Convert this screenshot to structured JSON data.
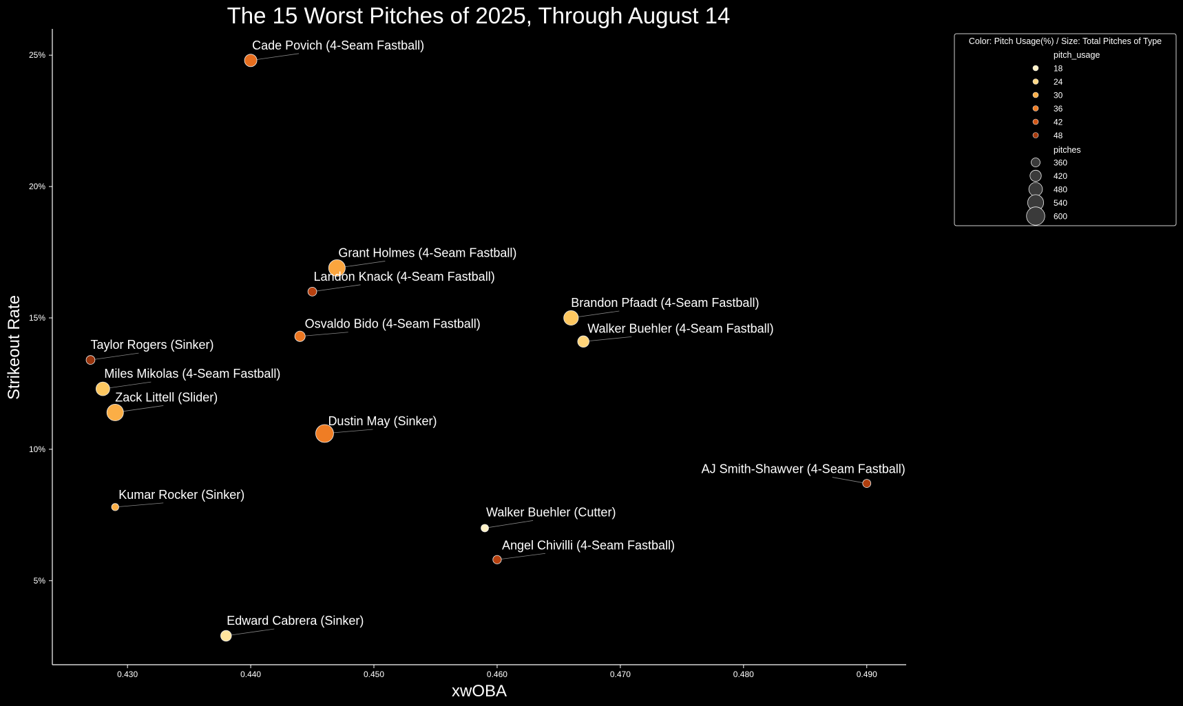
{
  "chart_data": {
    "type": "scatter",
    "title": "The 15 Worst Pitches of 2025, Through August 14",
    "xlabel": "xwOBA",
    "ylabel": "Strikeout Rate",
    "xlim": [
      0.4239,
      0.4932
    ],
    "ylim": [
      1.8,
      26.0
    ],
    "xticks": [
      0.43,
      0.44,
      0.45,
      0.46,
      0.47,
      0.48,
      0.49
    ],
    "xtick_labels": [
      "0.430",
      "0.440",
      "0.450",
      "0.460",
      "0.470",
      "0.480",
      "0.490"
    ],
    "yticks": [
      5,
      10,
      15,
      20,
      25
    ],
    "ytick_labels": [
      "5%",
      "10%",
      "15%",
      "20%",
      "25%"
    ],
    "grid": false,
    "points": [
      {
        "label": "Cade Povich (4-Seam Fastball)",
        "x": 0.44,
        "y": 24.8,
        "usage": 38,
        "pitches": 430
      },
      {
        "label": "Grant Holmes (4-Seam Fastball)",
        "x": 0.447,
        "y": 16.9,
        "usage": 31,
        "pitches": 560
      },
      {
        "label": "Landon Knack (4-Seam Fastball)",
        "x": 0.445,
        "y": 16.0,
        "usage": 46,
        "pitches": 320
      },
      {
        "label": "Brandon Pfaadt (4-Seam Fastball)",
        "x": 0.466,
        "y": 15.0,
        "usage": 27,
        "pitches": 500
      },
      {
        "label": "Walker Buehler (4-Seam Fastball)",
        "x": 0.467,
        "y": 14.1,
        "usage": 25,
        "pitches": 400
      },
      {
        "label": "Osvaldo Bido (4-Seam Fastball)",
        "x": 0.444,
        "y": 14.3,
        "usage": 37,
        "pitches": 370
      },
      {
        "label": "Taylor Rogers (Sinker)",
        "x": 0.427,
        "y": 13.4,
        "usage": 50,
        "pitches": 320
      },
      {
        "label": "Miles Mikolas (4-Seam Fastball)",
        "x": 0.428,
        "y": 12.3,
        "usage": 27,
        "pitches": 470
      },
      {
        "label": "Zack Littell (Slider)",
        "x": 0.429,
        "y": 11.4,
        "usage": 30,
        "pitches": 560
      },
      {
        "label": "Dustin May (Sinker)",
        "x": 0.446,
        "y": 10.6,
        "usage": 36,
        "pitches": 600
      },
      {
        "label": "AJ Smith-Shawver (4-Seam Fastball)",
        "x": 0.49,
        "y": 8.7,
        "usage": 47,
        "pitches": 300
      },
      {
        "label": "Kumar Rocker (Sinker)",
        "x": 0.429,
        "y": 7.8,
        "usage": 30,
        "pitches": 270
      },
      {
        "label": "Walker Buehler (Cutter)",
        "x": 0.459,
        "y": 7.0,
        "usage": 18,
        "pitches": 280
      },
      {
        "label": "Angel Chivilli (4-Seam Fastball)",
        "x": 0.46,
        "y": 5.8,
        "usage": 46,
        "pitches": 310
      },
      {
        "label": "Edward Cabrera (Sinker)",
        "x": 0.438,
        "y": 2.9,
        "usage": 22,
        "pitches": 380
      }
    ],
    "legend": {
      "placement": "top-right outside",
      "title": "Color: Pitch Usage(%) / Size: Total Pitches of Type",
      "color_title": "pitch_usage",
      "color_entries": [
        18,
        24,
        30,
        36,
        42,
        48
      ],
      "color_labels": [
        "18",
        "24",
        "30",
        "36",
        "42",
        "48"
      ],
      "size_title": "pitches",
      "size_entries": [
        360,
        420,
        480,
        540,
        600
      ],
      "size_labels": [
        "360",
        "420",
        "480",
        "540",
        "600"
      ]
    },
    "colors": {
      "background": "#000000",
      "axes": "#ffffff",
      "marker_edge": "#f0f0f0",
      "leader_line": "#888888",
      "legend_size_fill": "#3a3a3a"
    },
    "colormap": [
      "#fff8e1",
      "#ffe9a8",
      "#fdc55c",
      "#f9902a",
      "#e0621a",
      "#b8420f",
      "#8a2e0a"
    ],
    "colormap_range": [
      15,
      52
    ]
  }
}
